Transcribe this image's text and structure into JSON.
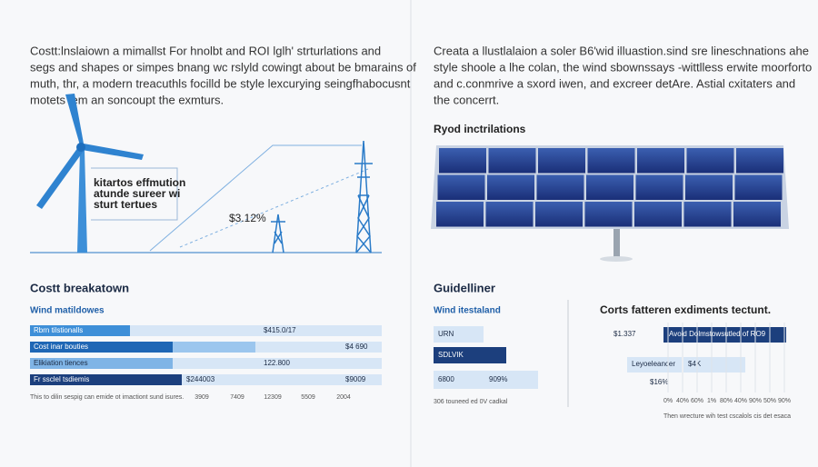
{
  "left": {
    "paragraph": [
      "Costt:lnslaiown a mimallst For hnolbt and ROI lglh' strturlations and",
      "segs and shapes or simpes bnang wc rslyld cowingt about be bmarains of",
      "muth, thr, a modern treacuthls focilld be style lexcurying seingfhabocusnt",
      "motets lem an soncoupt the exmturs."
    ],
    "illustration": {
      "box": [
        "kitartos effmution",
        "atunde sureer wi",
        "sturt tertues"
      ],
      "tag": "$3.12%"
    },
    "breakdown": {
      "title": "Costt breakatown",
      "subtitle": "Wind matildowes",
      "rows": [
        {
          "label": "Rbrn tilstionalls",
          "values": [
            "$415.0/17"
          ]
        },
        {
          "label": "Cost inar bouties",
          "values": [
            "$4 690"
          ]
        },
        {
          "label": "Elikiation tiences",
          "values": [
            "122.800"
          ]
        },
        {
          "label": "Fr ssclel tsdiemis",
          "values": [
            "$244003",
            "$9009"
          ]
        }
      ],
      "note": "This to dilin sespig can emide ot imactiont sund isures.",
      "axis": [
        "3909",
        "7409",
        "12309",
        "5509",
        "2004"
      ]
    }
  },
  "right": {
    "paragraph": [
      "Creata a llustlalaion a soler B6'wid illuastion.sind sre lineschnations ahe",
      "style shoole a lhe colan, the wind sbownssays -wittlless erwite moorforto",
      "and c.conmrive a sxord iwen, and excreer detAre. Astial cxitaters and",
      "the concerrt."
    ],
    "illustration": {
      "label": "Ryod inctrilations"
    },
    "guidelines": {
      "title": "Guidelliner",
      "subtitle": "Wind itestaland",
      "rows": [
        "URN",
        "SDLVIK",
        [
          "6800",
          "909%"
        ]
      ],
      "axis": "306 touneed ed 0V cadkal"
    },
    "costs": {
      "title": "Corts fatteren exdiments tectunt.",
      "rows": [
        {
          "value": "$1.337",
          "label": "Avoid Dolmstowsutled of RO9"
        },
        {
          "label": "Leyoeleancer",
          "value": "$4K"
        },
        "$16%"
      ],
      "axis": [
        "0%",
        "40%",
        "60%",
        "1%",
        "80%",
        "40%",
        "90%",
        "50%",
        "90%"
      ],
      "note": "Then wrecture wih test cscalols cis det esaca"
    }
  }
}
